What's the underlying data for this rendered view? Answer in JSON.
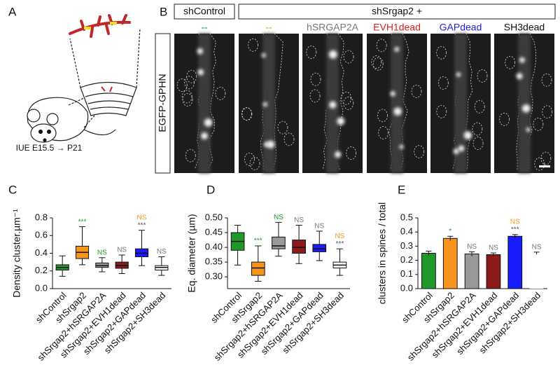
{
  "panel_labels": [
    "A",
    "B",
    "C",
    "D",
    "E"
  ],
  "panel_a": {
    "caption": "IUE E15.5 → P21"
  },
  "panel_b": {
    "control_header": "shControl",
    "group_header": "shSrgap2 +",
    "stain": "EGFP-GPHN",
    "columns": [
      {
        "text": "--",
        "color": "#1f9a2a"
      },
      {
        "text": "--",
        "color": "#f7941d"
      },
      {
        "text": "hSRGAP2A",
        "color": "#777777"
      },
      {
        "text": "EVH1dead",
        "color": "#d42020"
      },
      {
        "text": "GAPdead",
        "color": "#2020d0"
      },
      {
        "text": "SH3dead",
        "color": "#111111"
      }
    ]
  },
  "chart_data": [
    {
      "type": "box",
      "y_label": "Density cluster.µm⁻¹",
      "categories": [
        "shControl",
        "shSrgap2",
        "shSrgap2+hSRGAP2A",
        "shSrgap2+EVH1dead",
        "shSrgap2+GAPdead",
        "shSrgap2+SH3dead"
      ],
      "colors": [
        "#1f9a2a",
        "#f7941d",
        "#999999",
        "#8b1a1a",
        "#1a1aff",
        "#ffffff"
      ],
      "boxes": [
        {
          "min": 0.14,
          "q1": 0.21,
          "median": 0.24,
          "q3": 0.27,
          "max": 0.37
        },
        {
          "min": 0.27,
          "q1": 0.34,
          "median": 0.41,
          "q3": 0.48,
          "max": 0.7
        },
        {
          "min": 0.19,
          "q1": 0.24,
          "median": 0.26,
          "q3": 0.29,
          "max": 0.35
        },
        {
          "min": 0.17,
          "q1": 0.23,
          "median": 0.26,
          "q3": 0.3,
          "max": 0.38
        },
        {
          "min": 0.26,
          "q1": 0.36,
          "median": 0.4,
          "q3": 0.45,
          "max": 0.66
        },
        {
          "min": 0.15,
          "q1": 0.21,
          "median": 0.24,
          "q3": 0.26,
          "max": 0.36
        }
      ],
      "annotations": [
        null,
        [
          {
            "text": "***",
            "color": "#1f9a2a"
          }
        ],
        [
          {
            "text": "NS",
            "color": "#1f9a2a"
          }
        ],
        [
          {
            "text": "NS",
            "color": "#777777"
          }
        ],
        [
          {
            "text": "NS",
            "color": "#f7941d"
          },
          {
            "text": "***",
            "color": "#555555"
          }
        ],
        [
          {
            "text": "NS",
            "color": "#777777"
          }
        ]
      ],
      "ylim": [
        0,
        0.8
      ],
      "yticks": [
        {
          "value": 0,
          "label": "0.0"
        },
        0.2,
        0.4,
        0.6,
        0.8
      ]
    },
    {
      "type": "box",
      "y_label": "Eq. diameter (µm)",
      "categories": [
        "shControl",
        "shSrgap2",
        "shSrgap2+hSRGAP2A",
        "shSrgap2+EVH1dead",
        "shSrgap2+GAPdead",
        "shSrgap2+SH3dead"
      ],
      "colors": [
        "#1f9a2a",
        "#f7941d",
        "#999999",
        "#8b1a1a",
        "#1a1aff",
        "#ffffff"
      ],
      "boxes": [
        {
          "min": 0.34,
          "q1": 0.39,
          "median": 0.42,
          "q3": 0.45,
          "max": 0.475
        },
        {
          "min": 0.285,
          "q1": 0.305,
          "median": 0.33,
          "q3": 0.35,
          "max": 0.405
        },
        {
          "min": 0.37,
          "q1": 0.395,
          "median": 0.405,
          "q3": 0.435,
          "max": 0.485
        },
        {
          "min": 0.345,
          "q1": 0.38,
          "median": 0.4,
          "q3": 0.425,
          "max": 0.475
        },
        {
          "min": 0.355,
          "q1": 0.385,
          "median": 0.395,
          "q3": 0.41,
          "max": 0.455
        },
        {
          "min": 0.305,
          "q1": 0.33,
          "median": 0.34,
          "q3": 0.35,
          "max": 0.395
        }
      ],
      "annotations": [
        null,
        [
          {
            "text": "***",
            "color": "#1f9a2a"
          }
        ],
        [
          {
            "text": "NS",
            "color": "#1f9a2a"
          }
        ],
        [
          {
            "text": "NS",
            "color": "#777777"
          }
        ],
        [
          {
            "text": "NS",
            "color": "#777777"
          }
        ],
        [
          {
            "text": "NS",
            "color": "#f7941d"
          },
          {
            "text": "***",
            "color": "#555555"
          }
        ]
      ],
      "ylim": [
        0.26,
        0.5
      ],
      "yticks": [
        {
          "value": 0.3,
          "label": "0.30"
        },
        0.35,
        {
          "value": 0.4,
          "label": "0.40"
        },
        0.45,
        {
          "value": 0.5,
          "label": "0.50"
        }
      ]
    },
    {
      "type": "bar",
      "y_label": "clusters in spines / total",
      "categories": [
        "shControl",
        "shSrgap2",
        "shSrgap2+hSRGAP2A",
        "shSrgap2+EVH1dead",
        "shSrgap2+GAPdead",
        "shSrgap2+SH3dead"
      ],
      "colors": [
        "#1f9a2a",
        "#f7941d",
        "#999999",
        "#8b1a1a",
        "#1a1aff",
        "#ffffff"
      ],
      "values": [
        0.25,
        0.355,
        0.245,
        0.24,
        0.37,
        0.25
      ],
      "errors": [
        0.015,
        0.015,
        0.015,
        0.012,
        0.012,
        0.008
      ],
      "annotations": [
        null,
        [
          {
            "text": "*",
            "color": "#1f9a2a"
          }
        ],
        [
          {
            "text": "NS",
            "color": "#777777"
          }
        ],
        [
          {
            "text": "NS",
            "color": "#777777"
          }
        ],
        [
          {
            "text": "NS",
            "color": "#f7941d"
          },
          {
            "text": "***",
            "color": "#555555"
          }
        ],
        [
          {
            "text": "NS",
            "color": "#777777"
          }
        ]
      ],
      "ylim": [
        0,
        0.5
      ],
      "yticks": [
        {
          "value": 0,
          "label": "0.0"
        },
        0.1,
        0.2,
        0.3,
        0.4,
        0.5
      ]
    }
  ]
}
